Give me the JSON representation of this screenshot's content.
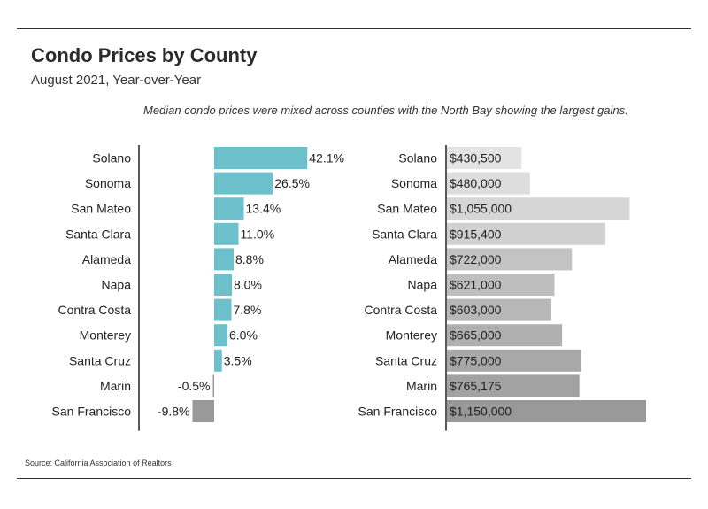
{
  "title": "Condo Prices by County",
  "subtitle": "August 2021, Year-over-Year",
  "annotation": "Median condo prices were mixed across counties with the North Bay showing the largest gains.",
  "source": "Source:  California Association of Realtors",
  "colors": {
    "pct_positive": "#6bc0cc",
    "pct_negative": "#999999",
    "price_bars": [
      "#e3e3e3",
      "#dddddd",
      "#d6d6d6",
      "#d0d0d0",
      "#c3c3c3",
      "#bebebe",
      "#b7b7b7",
      "#b0b0b0",
      "#a8a8a8",
      "#a2a2a2",
      "#999999"
    ],
    "axis": "#222222"
  },
  "chart_data": [
    {
      "type": "bar",
      "orientation": "horizontal",
      "categories": [
        "Solano",
        "Sonoma",
        "San Mateo",
        "Santa Clara",
        "Alameda",
        "Napa",
        "Contra Costa",
        "Monterey",
        "Santa Cruz",
        "Marin",
        "San Francisco"
      ],
      "values": [
        42.1,
        26.5,
        13.4,
        11.0,
        8.8,
        8.0,
        7.8,
        6.0,
        3.5,
        -0.5,
        -9.8
      ],
      "labels": [
        "42.1%",
        "26.5%",
        "13.4%",
        "11.0%",
        "8.8%",
        "8.0%",
        "7.8%",
        "6.0%",
        "3.5%",
        "-0.5%",
        "-9.8%"
      ],
      "unit": "%",
      "xlim": [
        -10,
        45
      ],
      "grid": false
    },
    {
      "type": "bar",
      "orientation": "horizontal",
      "categories": [
        "Solano",
        "Sonoma",
        "San Mateo",
        "Santa Clara",
        "Alameda",
        "Napa",
        "Contra Costa",
        "Monterey",
        "Santa Cruz",
        "Marin",
        "San Francisco"
      ],
      "values": [
        430500,
        480000,
        1055000,
        915400,
        722000,
        621000,
        603000,
        665000,
        775000,
        765175,
        1150000
      ],
      "labels": [
        "$430,500",
        "$480,000",
        "$1,055,000",
        "$915,400",
        "$722,000",
        "$621,000",
        "$603,000",
        "$665,000",
        "$775,000",
        "$765,175",
        "$1,150,000"
      ],
      "unit": "$",
      "xlim": [
        0,
        1200000
      ],
      "grid": false
    }
  ]
}
